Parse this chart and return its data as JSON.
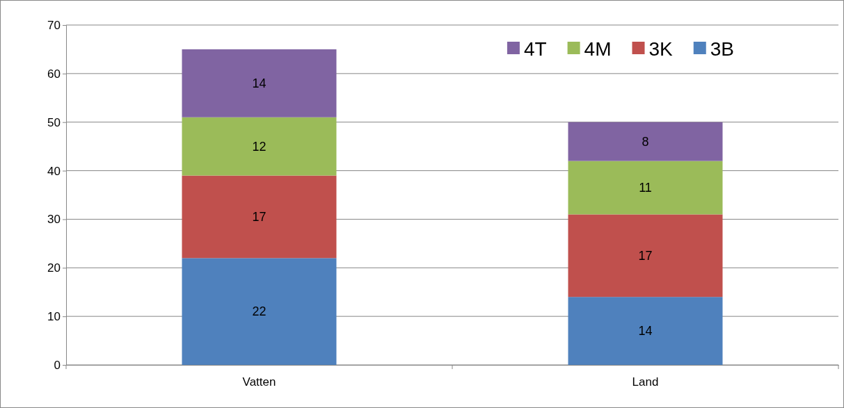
{
  "chart_data": {
    "type": "bar",
    "stacked": true,
    "categories": [
      "Vatten",
      "Land"
    ],
    "series": [
      {
        "name": "3B",
        "color": "#4f81bd",
        "values": [
          22,
          14
        ]
      },
      {
        "name": "3K",
        "color": "#c0504d",
        "values": [
          17,
          17
        ]
      },
      {
        "name": "4M",
        "color": "#9bbb59",
        "values": [
          12,
          11
        ]
      },
      {
        "name": "4T",
        "color": "#8064a2",
        "values": [
          14,
          8
        ]
      }
    ],
    "ylim": [
      0,
      70
    ],
    "yticks": [
      0,
      10,
      20,
      30,
      40,
      50,
      60,
      70
    ],
    "grid": "y",
    "legend": "top right",
    "data_labels": true
  }
}
